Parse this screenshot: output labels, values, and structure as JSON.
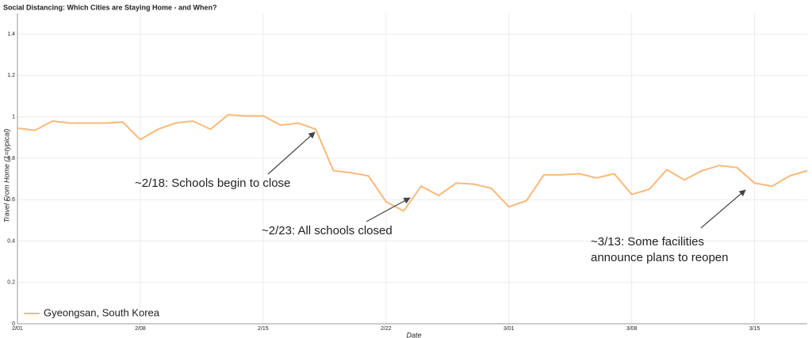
{
  "chart_data": {
    "type": "line",
    "title": "Social Distancing: Which Cities are Staying Home - and When?",
    "x_label": "Date",
    "y_label": "Travel From Home (1=typical)",
    "categories": [
      "2/01",
      null,
      null,
      null,
      null,
      null,
      null,
      "2/08",
      null,
      null,
      null,
      null,
      null,
      null,
      "2/15",
      null,
      null,
      null,
      null,
      null,
      null,
      "2/22",
      null,
      null,
      null,
      null,
      null,
      null,
      "3/01",
      null,
      null,
      null,
      null,
      null,
      null,
      "3/08",
      null,
      null,
      null,
      null,
      null,
      null,
      "3/15",
      null,
      null,
      null
    ],
    "series": [
      {
        "name": "Gyeongsan, South Korea",
        "color": "#f9b97a",
        "values": [
          0.945,
          0.935,
          0.98,
          0.97,
          0.97,
          0.97,
          0.975,
          0.89,
          0.94,
          0.97,
          0.98,
          0.94,
          1.01,
          1.005,
          1.005,
          0.96,
          0.97,
          0.94,
          0.74,
          0.73,
          0.715,
          0.59,
          0.545,
          0.665,
          0.62,
          0.68,
          0.675,
          0.655,
          0.565,
          0.595,
          0.72,
          0.72,
          0.725,
          0.705,
          0.725,
          0.625,
          0.65,
          0.745,
          0.695,
          0.74,
          0.765,
          0.755,
          0.68,
          0.665,
          0.715,
          0.74
        ]
      }
    ],
    "ylim": [
      0,
      1.5
    ],
    "yticks": [
      0,
      0.2,
      0.4,
      0.6,
      0.8,
      1,
      1.2,
      1.4
    ],
    "grid": true,
    "legend": "lower left",
    "annotations": [
      {
        "lines": [
          "~2/18: Schools begin to close"
        ]
      },
      {
        "lines": [
          "~2/23: All schools closed"
        ]
      },
      {
        "lines": [
          "~3/13: Some facilities",
          "announce plans to reopen"
        ]
      }
    ]
  }
}
